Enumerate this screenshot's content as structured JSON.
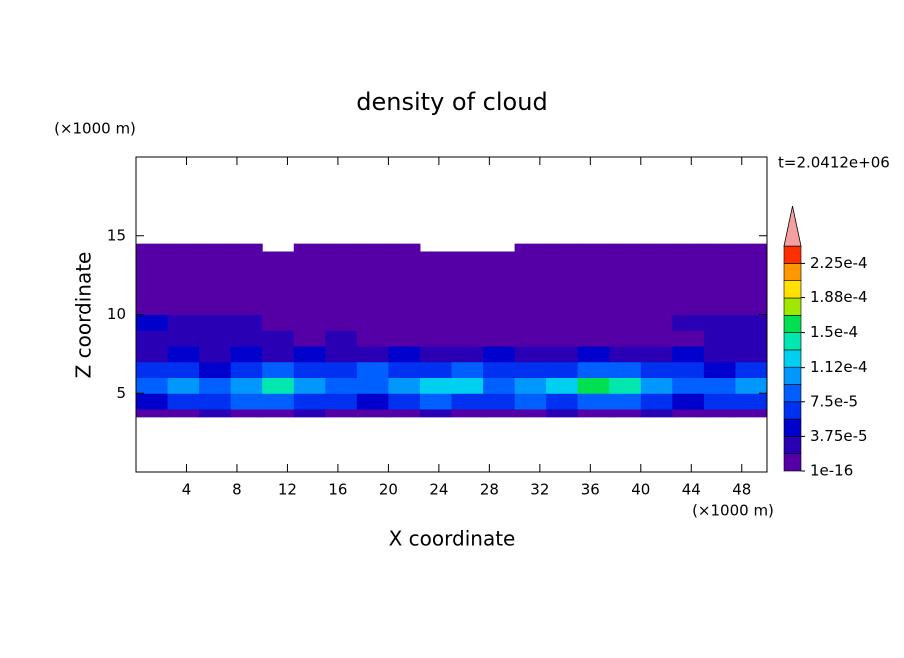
{
  "chart_data": {
    "type": "contour",
    "title": "density of cloud",
    "x_label": "X coordinate",
    "y_label": "Z coordinate",
    "x_unit": "(×1000 m)",
    "y_unit": "(×1000 m)",
    "annotation": "t=2.0412e+06",
    "xlim": [
      0,
      50
    ],
    "ylim": [
      0,
      20
    ],
    "xticks": [
      4,
      8,
      12,
      16,
      20,
      24,
      28,
      32,
      36,
      40,
      44,
      48
    ],
    "yticks": [
      5,
      10,
      15
    ],
    "x_edges": [
      0,
      2.5,
      5,
      7.5,
      10,
      12.5,
      15,
      17.5,
      20,
      22.5,
      25,
      27.5,
      30,
      32.5,
      35,
      37.5,
      40,
      42.5,
      45,
      47.5,
      50
    ],
    "y_edges": [
      3.5,
      4,
      5,
      6,
      7,
      8,
      9,
      10,
      11,
      12,
      13,
      14,
      14.5
    ],
    "z": [
      [
        1e-05,
        1e-05,
        2e-05,
        1e-05,
        1e-05,
        2e-05,
        1e-05,
        1e-05,
        1e-05,
        2e-05,
        1e-05,
        1e-05,
        1e-05,
        2e-05,
        1e-05,
        1e-05,
        2e-05,
        1e-05,
        1e-05,
        1e-05
      ],
      [
        5e-05,
        7e-05,
        6e-05,
        8e-05,
        9e-05,
        7e-05,
        6e-05,
        5e-05,
        7e-05,
        8e-05,
        6e-05,
        7e-05,
        8e-05,
        7e-05,
        9e-05,
        8e-05,
        6e-05,
        5e-05,
        7e-05,
        6e-05
      ],
      [
        9e-05,
        0.00011,
        8e-05,
        0.000105,
        0.000135,
        0.00011,
        9e-05,
        8e-05,
        0.0001,
        0.00012,
        0.000115,
        9e-05,
        0.0001,
        0.00012,
        0.00016,
        0.00014,
        0.00011,
        9e-05,
        8e-05,
        0.000105
      ],
      [
        6e-05,
        7e-05,
        5e-05,
        6e-05,
        8e-05,
        7e-05,
        6e-05,
        8e-05,
        7e-05,
        6e-05,
        8e-05,
        7e-05,
        6e-05,
        7e-05,
        8e-05,
        9e-05,
        7e-05,
        6e-05,
        5e-05,
        6e-05
      ],
      [
        3e-05,
        4e-05,
        3e-05,
        4e-05,
        3e-05,
        4e-05,
        3e-05,
        3e-05,
        4e-05,
        3e-05,
        3e-05,
        4e-05,
        3e-05,
        3e-05,
        4e-05,
        3e-05,
        3e-05,
        4e-05,
        3e-05,
        3e-05
      ],
      [
        3e-05,
        2.5e-05,
        2e-05,
        2.5e-05,
        2e-05,
        1.5e-05,
        2e-05,
        1.5e-05,
        1.5e-05,
        1.5e-05,
        1.5e-05,
        1e-05,
        1e-05,
        1e-05,
        1e-05,
        1e-05,
        1e-05,
        1e-05,
        2e-05,
        2e-05
      ],
      [
        4e-05,
        3e-05,
        2.5e-05,
        2e-05,
        1e-16,
        1e-16,
        1e-16,
        1e-16,
        1e-16,
        1e-16,
        1e-16,
        1e-16,
        1e-16,
        1e-16,
        1e-16,
        1e-16,
        1e-16,
        2e-05,
        2.5e-05,
        3e-05
      ],
      [
        1e-16,
        1e-16,
        1e-16,
        1e-16,
        1e-16,
        1e-16,
        1e-16,
        1e-16,
        1e-16,
        1e-16,
        1e-16,
        1e-16,
        1e-16,
        1e-16,
        1e-16,
        1e-16,
        1e-16,
        1e-16,
        1e-16,
        1e-16
      ],
      [
        1e-16,
        1e-16,
        1e-16,
        1e-16,
        1e-16,
        1e-16,
        1e-16,
        1e-16,
        1e-16,
        1e-16,
        1e-16,
        1e-16,
        1e-16,
        1e-16,
        1e-16,
        1e-16,
        1e-16,
        1e-16,
        1e-16,
        1e-16
      ],
      [
        1e-16,
        1e-16,
        1e-16,
        1e-16,
        1e-16,
        1e-16,
        1e-16,
        1e-16,
        1e-16,
        1e-16,
        1e-16,
        1e-16,
        1e-16,
        1e-16,
        1e-16,
        1e-16,
        1e-16,
        1e-16,
        1e-16,
        1e-16
      ],
      [
        1e-16,
        1e-16,
        1e-16,
        1e-16,
        1e-16,
        1e-16,
        1e-16,
        1e-16,
        1e-16,
        1e-16,
        1e-16,
        1e-16,
        1e-16,
        1e-16,
        1e-16,
        1e-16,
        1e-16,
        1e-16,
        1e-16,
        1e-16
      ],
      [
        1e-16,
        1e-16,
        1e-16,
        1e-16,
        null,
        1e-16,
        1e-16,
        1e-16,
        1e-16,
        null,
        null,
        null,
        1e-16,
        1e-16,
        1e-16,
        1e-16,
        1e-16,
        1e-16,
        1e-16,
        1e-16
      ]
    ],
    "levels": [
      1e-16,
      1.875e-05,
      3.75e-05,
      5.625e-05,
      7.5e-05,
      9.375e-05,
      0.0001125,
      0.00013125,
      0.00015,
      0.00016875,
      0.0001875,
      0.00020625,
      0.000225,
      0.00024375
    ],
    "colors": [
      "#5400a6",
      "#2a00b4",
      "#0000cc",
      "#0030f0",
      "#0060ff",
      "#0098ff",
      "#00d0f0",
      "#00e8b0",
      "#00e050",
      "#a0e800",
      "#ffe000",
      "#ff9800",
      "#ff3000"
    ],
    "extend_color": "#f4a0a0",
    "colorbar_ticks": [
      {
        "value": 1e-16,
        "label": "1e-16"
      },
      {
        "value": 3.75e-05,
        "label": "3.75e-5"
      },
      {
        "value": 7.5e-05,
        "label": "7.5e-5"
      },
      {
        "value": 0.000112,
        "label": "1.12e-4"
      },
      {
        "value": 0.00015,
        "label": "1.5e-4"
      },
      {
        "value": 0.000188,
        "label": "1.88e-4"
      },
      {
        "value": 0.000225,
        "label": "2.25e-4"
      }
    ]
  }
}
